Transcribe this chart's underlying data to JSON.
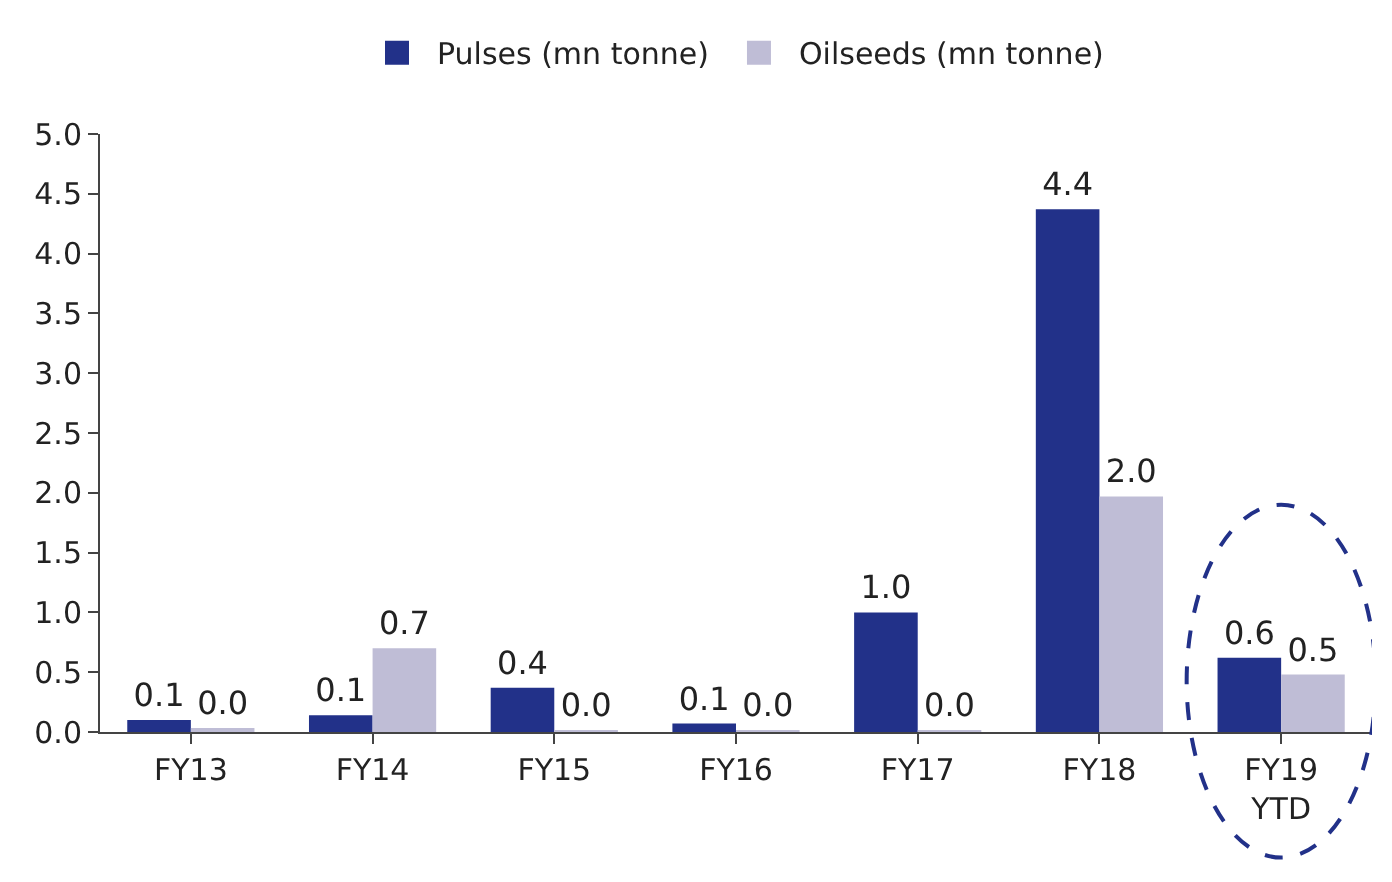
{
  "chart_data": {
    "type": "bar",
    "categories": [
      "FY13",
      "FY14",
      "FY15",
      "FY16",
      "FY17",
      "FY18",
      "FY19\nYTD"
    ],
    "series": [
      {
        "name": "Pulses (mn tonne)",
        "color": "#223189",
        "values": [
          0.1,
          0.14,
          0.37,
          0.07,
          1.0,
          4.37,
          0.62
        ],
        "value_labels": [
          "0.1",
          "0.1",
          "0.4",
          "0.1",
          "1.0",
          "4.4",
          "0.6"
        ]
      },
      {
        "name": "Oilseeds (mn tonne)",
        "color": "#bfbdd6",
        "values": [
          0.02,
          0.7,
          0.01,
          0.01,
          0.01,
          1.97,
          0.48
        ],
        "value_labels": [
          "0.0",
          "0.7",
          "0.0",
          "0.0",
          "0.0",
          "2.0",
          "0.5"
        ]
      }
    ],
    "ylim": [
      0,
      5
    ],
    "yticks": [
      {
        "value": 0,
        "label": "0.0"
      },
      {
        "value": 0.5,
        "label": "0.5"
      },
      {
        "value": 1,
        "label": "1.0"
      },
      {
        "value": 1.5,
        "label": "1.5"
      },
      {
        "value": 2,
        "label": "2.0"
      },
      {
        "value": 2.5,
        "label": "2.5"
      },
      {
        "value": 3,
        "label": "3.0"
      },
      {
        "value": 3.5,
        "label": "3.5"
      },
      {
        "value": 4,
        "label": "4.0"
      },
      {
        "value": 4.5,
        "label": "4.5"
      },
      {
        "value": 5,
        "label": "5.0"
      }
    ],
    "grid": false,
    "legend": "top"
  }
}
